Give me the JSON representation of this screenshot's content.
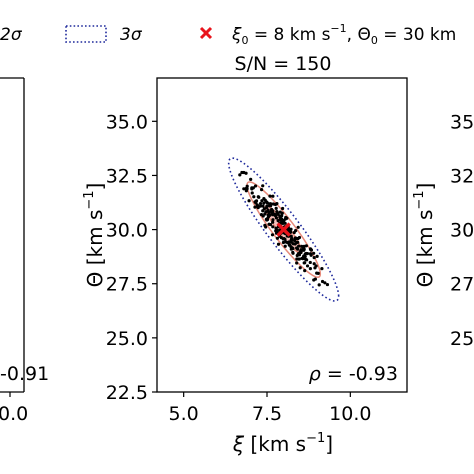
{
  "legend": {
    "sigma2_label": "2σ",
    "sigma3_label": "3σ",
    "truth_label_prefix": "ξ",
    "truth_label_sub0": "0",
    "truth_label_mid": " = 8 km s",
    "truth_label_sup": "−1",
    "truth_label_theta": ", Θ",
    "truth_label_sub1": "0",
    "truth_label_end": " = 30 km"
  },
  "colors": {
    "sigma1": "#e78a7a",
    "sigma2": "#e78a7a",
    "sigma3": "#1f2a9c",
    "fill": "#f4b6b0",
    "samples": "#000000",
    "truth": "#e8141c"
  },
  "center_panel": {
    "title": "S/N = 150",
    "rho_symbol": "ρ",
    "rho_value": " = -0.93",
    "xlabel_sym": "ξ",
    "xlabel_unit": " [km s",
    "xlabel_sup": "−1",
    "xlabel_close": "]",
    "ylabel_sym": "Θ",
    "ylabel_unit": " [km s",
    "ylabel_sup": "−1",
    "ylabel_close": "]"
  },
  "left_panel": {
    "rho_fragment": "-0.91",
    "xtick_fragment": "0.0"
  },
  "right_panel": {
    "ytick_fragments": [
      "35",
      "32",
      "30",
      "27",
      "25"
    ],
    "ylabel_sym": "Θ",
    "ylabel_unit": " [km s",
    "ylabel_sup": "−1",
    "ylabel_close": "]"
  },
  "chart_data": {
    "type": "scatter",
    "title": "S/N = 150",
    "xlabel": "ξ [km s−1]",
    "ylabel": "Θ [km s−1]",
    "xlim": [
      4.2,
      11.7
    ],
    "ylim": [
      22.5,
      37.0
    ],
    "xticks": [
      5.0,
      7.5,
      10.0
    ],
    "xtick_labels": [
      "5.0",
      "7.5",
      "10.0"
    ],
    "yticks": [
      22.5,
      25.0,
      27.5,
      30.0,
      32.5,
      35.0
    ],
    "ytick_labels": [
      "22.5",
      "25.0",
      "27.5",
      "30.0",
      "32.5",
      "35.0"
    ],
    "truth": {
      "x": 8.0,
      "y": 30.0
    },
    "rho": -0.93,
    "ellipse": {
      "cx": 8.0,
      "cy": 30.0,
      "sigma_x": 0.55,
      "sigma_y": 1.1
    },
    "legend_entries": [
      "2σ",
      "3σ",
      "ξ0 = 8 km s−1, Θ0 = 30 km"
    ],
    "grid": false
  }
}
